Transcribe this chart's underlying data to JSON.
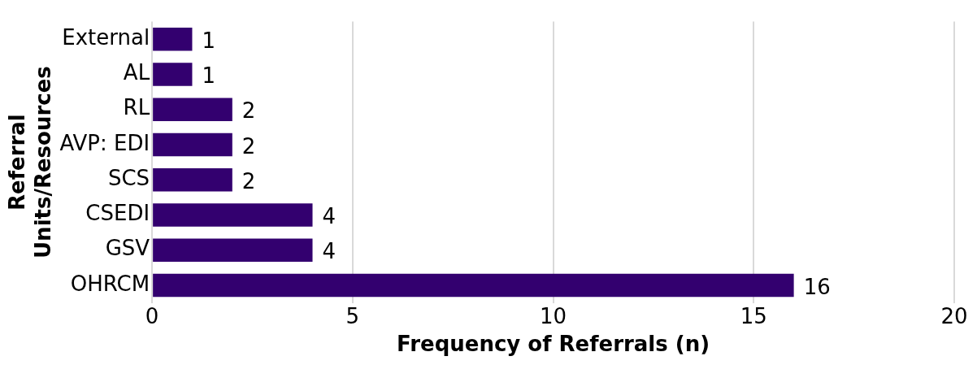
{
  "chart_data": {
    "type": "bar",
    "orientation": "horizontal",
    "categories": [
      "External",
      "AL",
      "RL",
      "AVP: EDI",
      "SCS",
      "CSEDI",
      "GSV",
      "OHRCM"
    ],
    "values": [
      1,
      1,
      2,
      2,
      2,
      4,
      4,
      16
    ],
    "color": "#33006f",
    "xlim": [
      0,
      20
    ],
    "xticks": [
      0,
      5,
      10,
      15,
      20
    ],
    "grid": "x",
    "data_labels": true,
    "xlabel": "Frequency of Referrals (n)",
    "ylabel": "Referral Units/Resources"
  }
}
